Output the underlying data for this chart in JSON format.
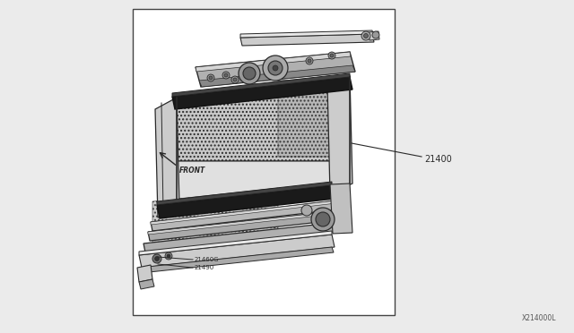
{
  "bg_color": "#ebebeb",
  "box_bg": "#ffffff",
  "box_border": "#444444",
  "part_label_21400": "21400",
  "part_label_21460G": "21460G",
  "part_label_21490": "21490",
  "watermark": "X214000L",
  "front_label": "FRONT",
  "dark_gray": "#2a2a2a",
  "mid_gray": "#888888",
  "light_gray": "#cccccc",
  "very_light": "#e8e8e8",
  "white": "#ffffff",
  "hatch_gray": "#aaaaaa"
}
